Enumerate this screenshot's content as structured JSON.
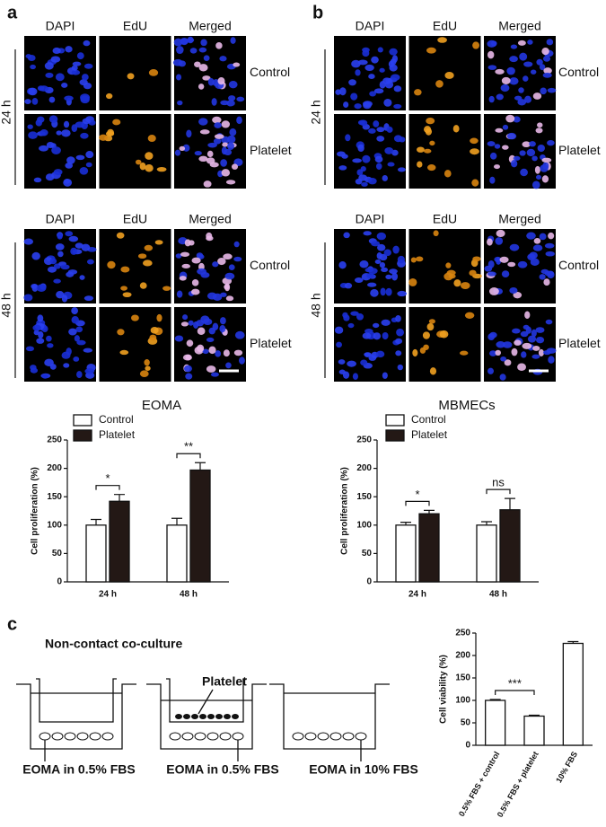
{
  "panels": [
    {
      "label": "a",
      "blocks": [
        {
          "time": "24 h",
          "columns": [
            "DAPI",
            "EdU",
            "Merged"
          ],
          "rows": [
            "Control",
            "Platelet"
          ]
        },
        {
          "time": "48 h",
          "columns": [
            "DAPI",
            "EdU",
            "Merged"
          ],
          "rows": [
            "Control",
            "Platelet"
          ]
        }
      ]
    },
    {
      "label": "b",
      "blocks": [
        {
          "time": "24 h",
          "columns": [
            "DAPI",
            "EdU",
            "Merged"
          ],
          "rows": [
            "Control",
            "Platelet"
          ]
        },
        {
          "time": "48 h",
          "columns": [
            "DAPI",
            "EdU",
            "Merged"
          ],
          "rows": [
            "Control",
            "Platelet"
          ]
        }
      ]
    },
    {
      "label": "c",
      "title": "Non-contact co-culture",
      "insert_label": "Platelet",
      "wells": [
        "EOMA in 0.5% FBS",
        "EOMA in 0.5% FBS",
        "EOMA in 10% FBS"
      ]
    }
  ],
  "chart_data": [
    {
      "type": "bar",
      "title": "EOMA",
      "y_label": "Cell proliferation (%)",
      "categories": [
        "24 h",
        "48 h"
      ],
      "series": [
        {
          "name": "Control",
          "color": "#ffffff",
          "values": [
            100,
            100
          ],
          "errors": [
            10,
            12
          ]
        },
        {
          "name": "Platelet",
          "color": "#231815",
          "values": [
            142,
            197
          ],
          "errors": [
            12,
            13
          ]
        }
      ],
      "annotations": [
        "*",
        "**"
      ],
      "ylim": [
        0,
        250
      ],
      "yticks": [
        0,
        50,
        100,
        150,
        200,
        250
      ]
    },
    {
      "type": "bar",
      "title": "MBMECs",
      "y_label": "Cell proliferation (%)",
      "categories": [
        "24 h",
        "48 h"
      ],
      "series": [
        {
          "name": "Control",
          "color": "#ffffff",
          "values": [
            100,
            100
          ],
          "errors": [
            5,
            6
          ]
        },
        {
          "name": "Platelet",
          "color": "#231815",
          "values": [
            120,
            127
          ],
          "errors": [
            6,
            20
          ]
        }
      ],
      "annotations": [
        "*",
        "ns"
      ],
      "ylim": [
        0,
        250
      ],
      "yticks": [
        0,
        50,
        100,
        150,
        200,
        250
      ]
    },
    {
      "type": "bar",
      "y_label": "Cell viability (%)",
      "categories": [
        "0.5% FBS + control",
        "0.5% FBS + platelet",
        "10% FBS"
      ],
      "values": [
        100,
        65,
        227
      ],
      "errors": [
        2,
        2,
        4
      ],
      "color": "#ffffff",
      "annotation": "***",
      "ylim": [
        0,
        250
      ],
      "yticks": [
        0,
        50,
        100,
        150,
        200,
        250
      ]
    }
  ]
}
